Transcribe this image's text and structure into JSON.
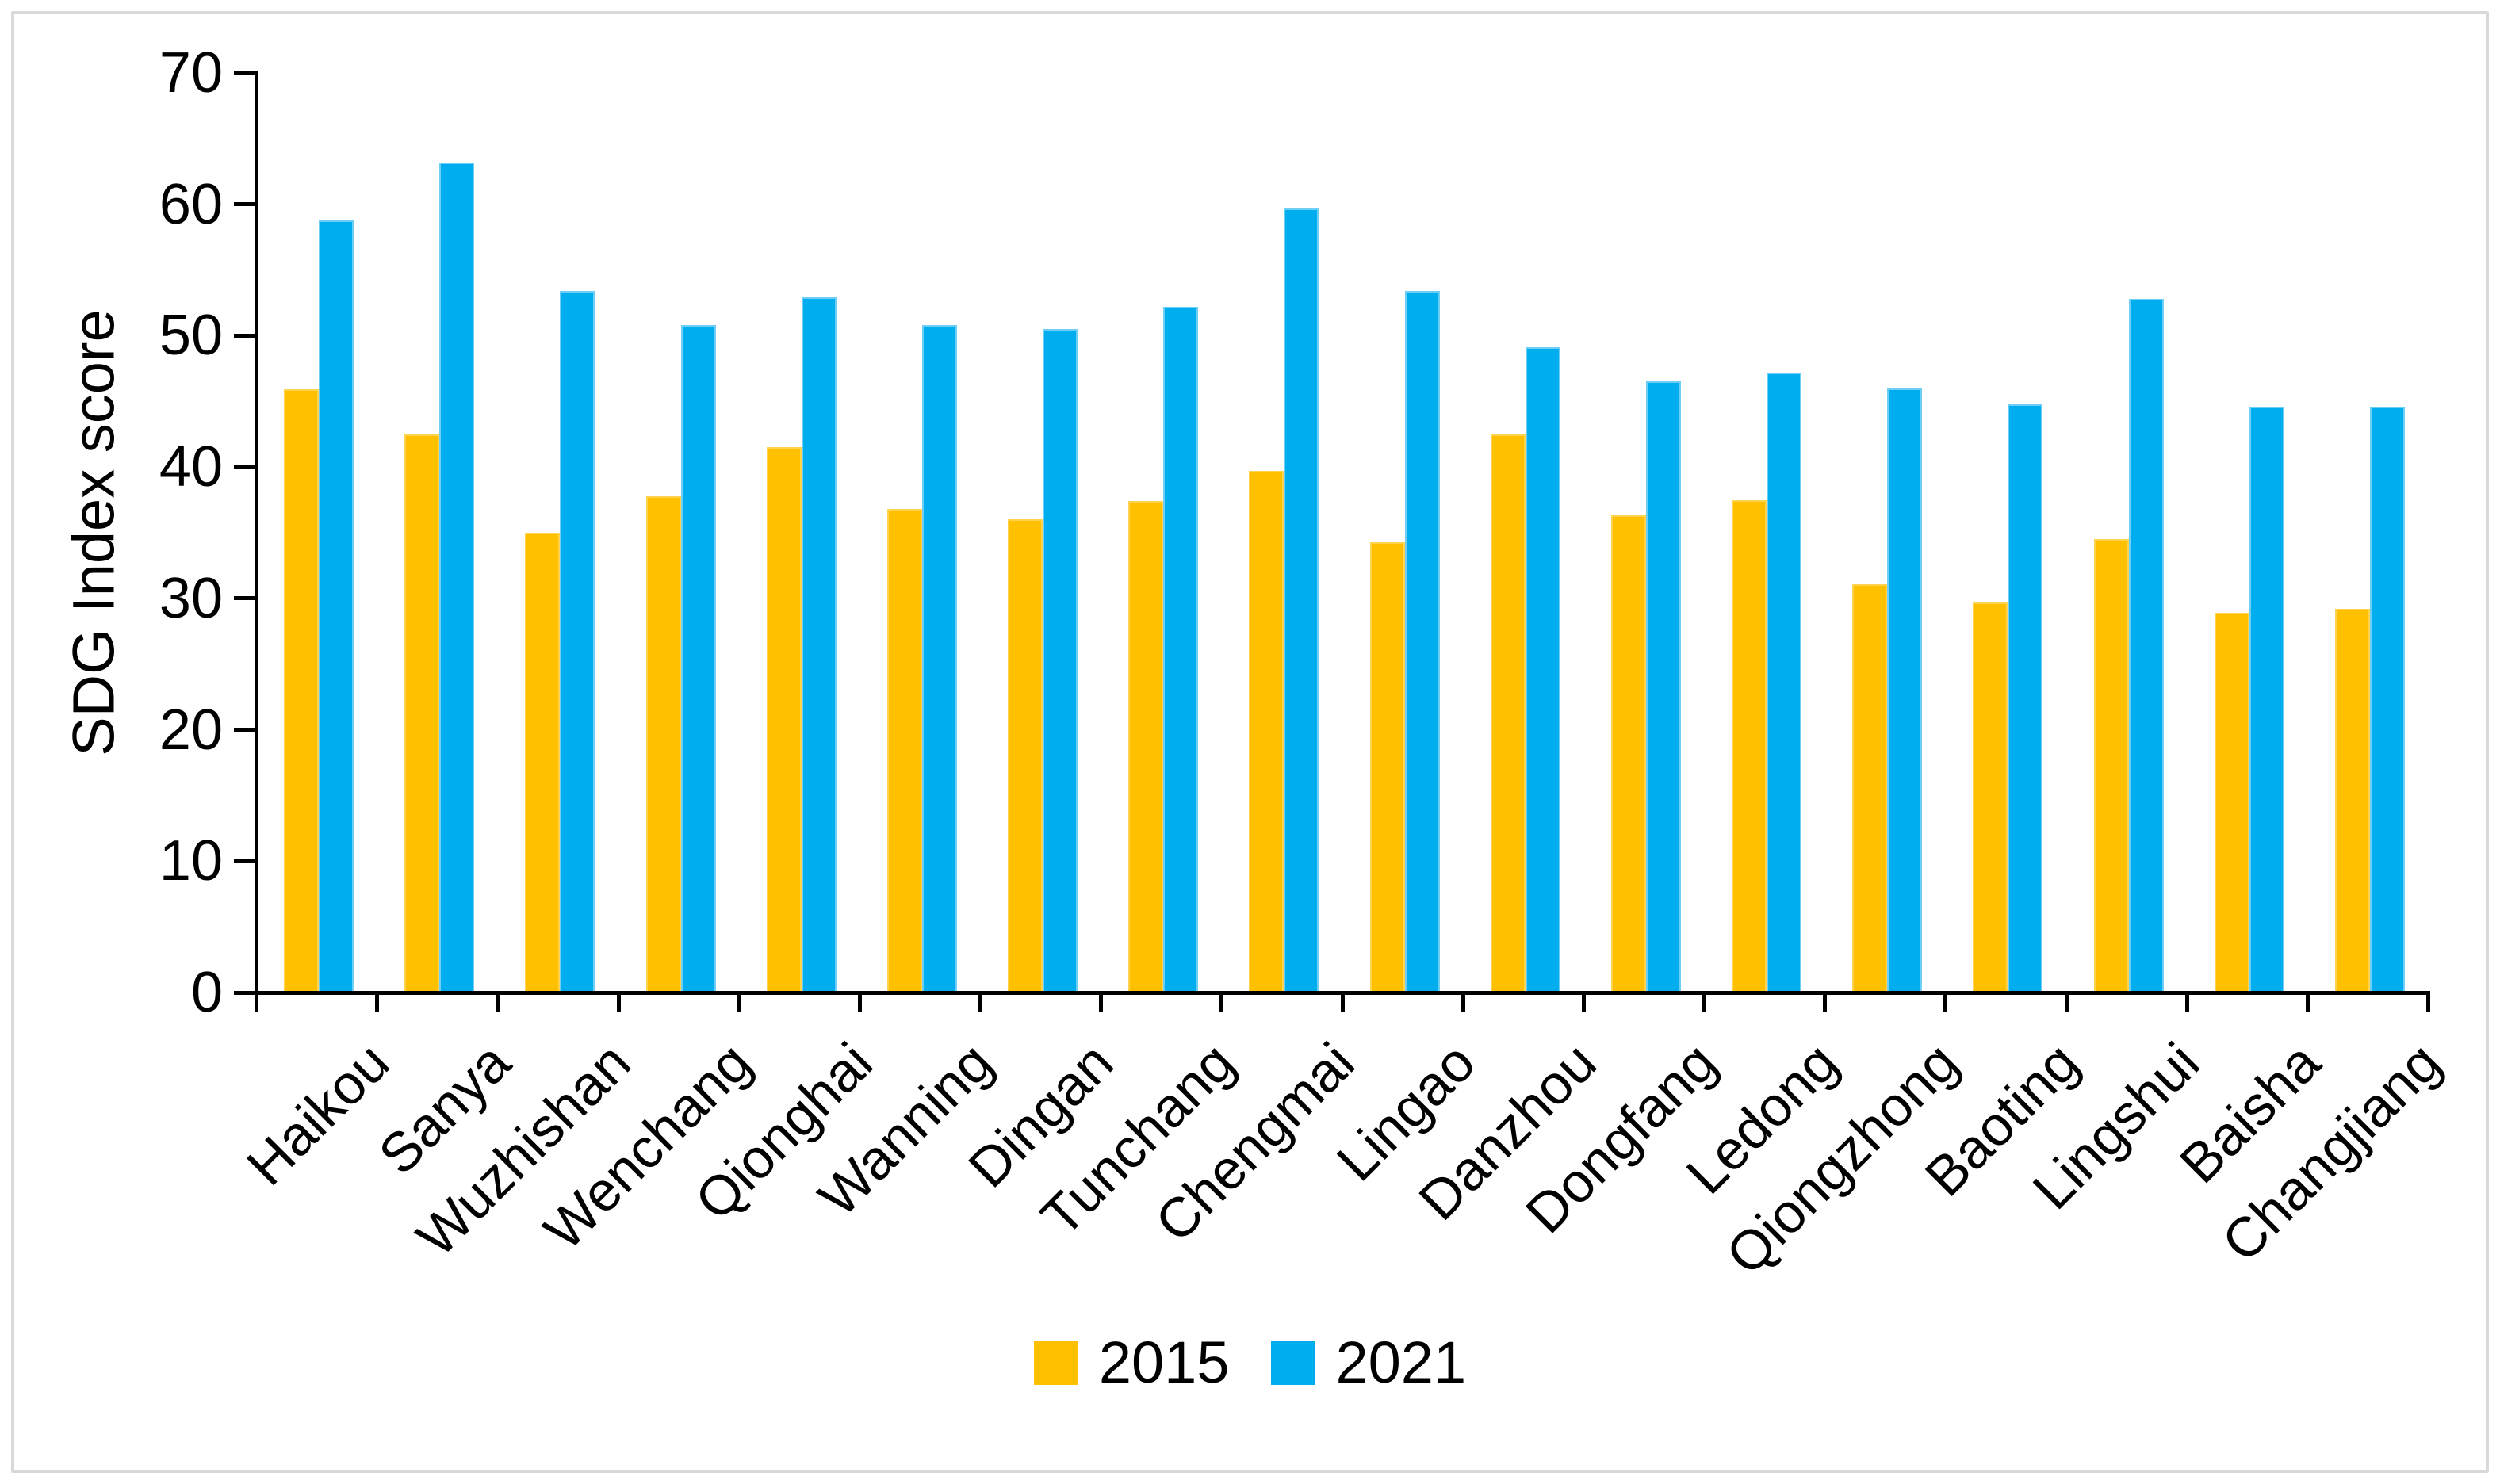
{
  "frame": {
    "border_color": "#d9d9d9",
    "background": "#ffffff"
  },
  "chart_data": {
    "type": "bar",
    "title": "",
    "ylabel": "SDG Index score",
    "xlabel": "",
    "ylim": [
      0,
      70
    ],
    "ytick_interval": 10,
    "yticks": [
      "0",
      "10",
      "20",
      "30",
      "40",
      "50",
      "60",
      "70"
    ],
    "grid": false,
    "legend_position": "bottom-center",
    "axis_color": "#000000",
    "categories": [
      "Haikou",
      "Sanya",
      "Wuzhishan",
      "Wenchang",
      "Qionghai",
      "Wanning",
      "Dingan",
      "Tunchang",
      "Chengmai",
      "Lingao",
      "Danzhou",
      "Dongfang",
      "Ledong",
      "Qiongzhong",
      "Baoting",
      "Lingshui",
      "Baisha",
      "Changjiang"
    ],
    "series": [
      {
        "name": "2015",
        "color": "#FFC000",
        "edge_color": "#FFD34D",
        "values": [
          45.9,
          42.5,
          35.0,
          37.8,
          41.5,
          36.8,
          36.0,
          37.4,
          39.7,
          34.3,
          42.5,
          36.3,
          37.5,
          31.1,
          29.7,
          34.5,
          28.9,
          29.2
        ]
      },
      {
        "name": "2021",
        "color": "#00AEEF",
        "edge_color": "#6DCFF6",
        "values": [
          58.8,
          63.2,
          53.4,
          50.8,
          52.9,
          50.8,
          50.5,
          52.2,
          59.7,
          53.4,
          49.1,
          46.5,
          47.2,
          46.0,
          44.8,
          52.8,
          44.6,
          44.6
        ]
      }
    ]
  }
}
